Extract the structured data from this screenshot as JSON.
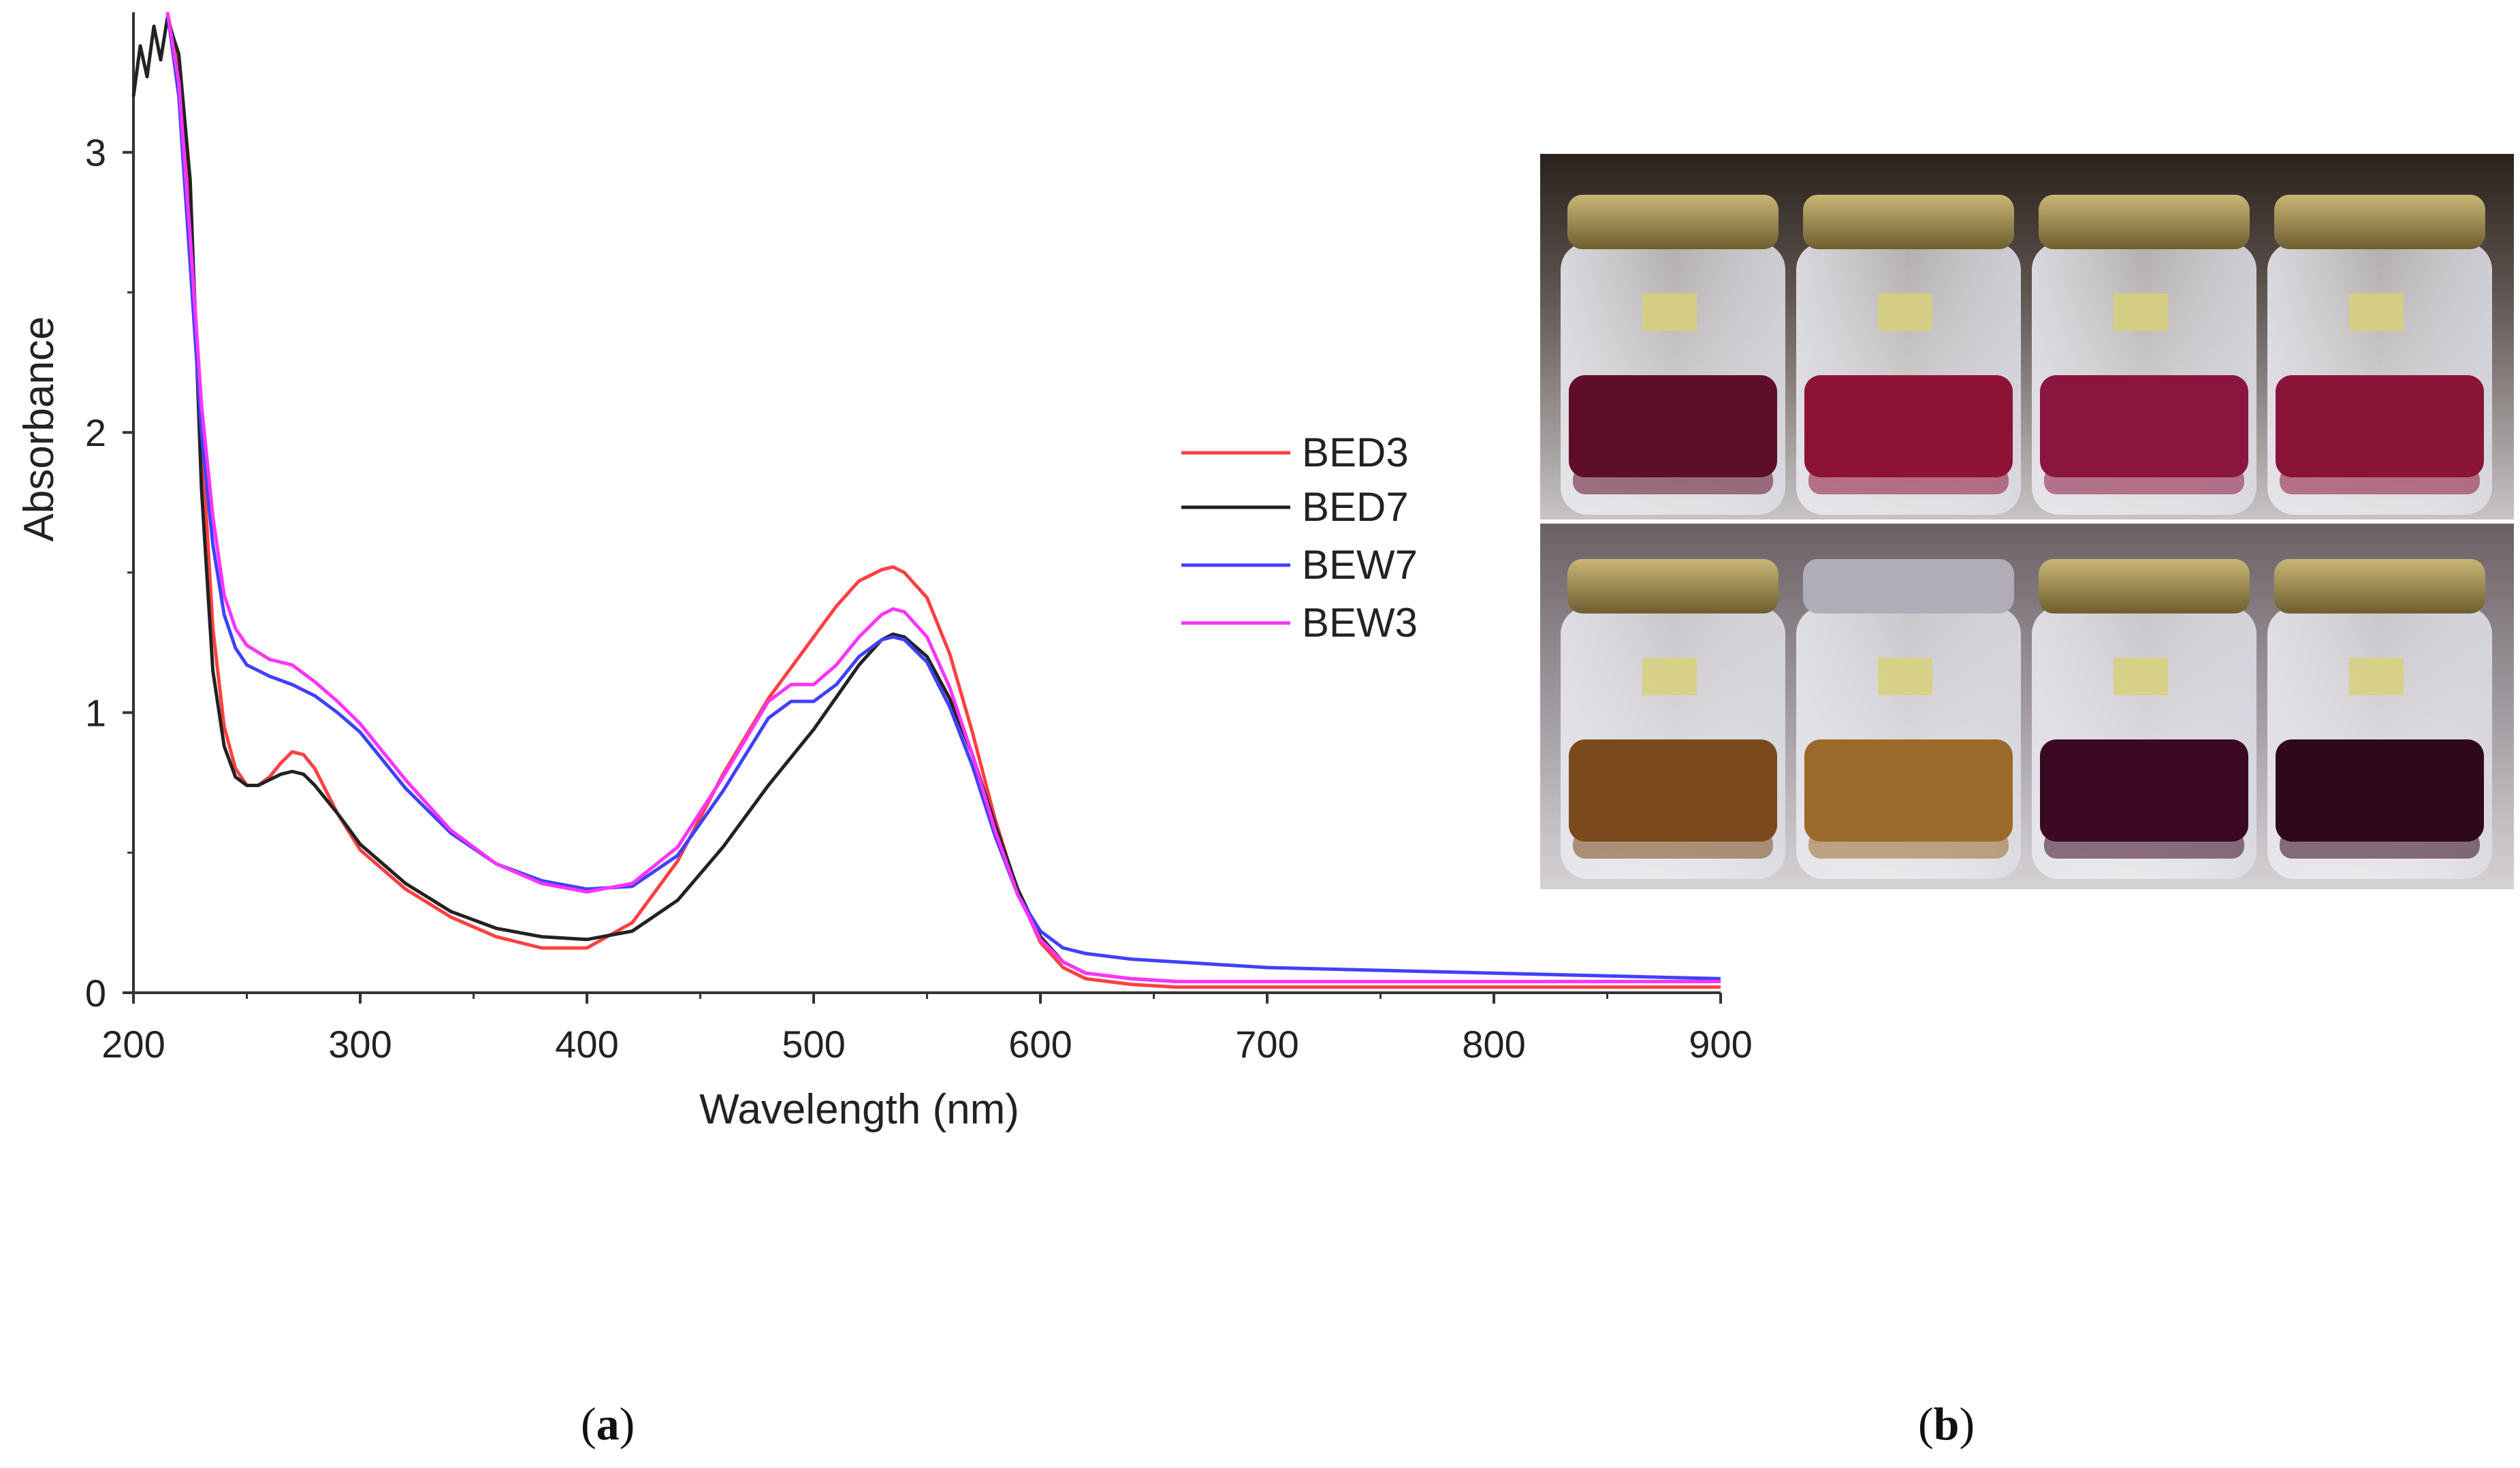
{
  "figure": {
    "panel_a": {
      "open": "(",
      "letter": "a",
      "close": ")"
    },
    "panel_b": {
      "open": "(",
      "letter": "b",
      "close": ")"
    }
  },
  "chart_data": {
    "type": "line",
    "title": "",
    "xlabel": "Wavelength (nm)",
    "ylabel": "Absorbance",
    "xlim": [
      200,
      900
    ],
    "ylim": [
      0,
      3.5
    ],
    "xticks": [
      200,
      300,
      400,
      500,
      600,
      700,
      800,
      900
    ],
    "yticks": [
      0,
      1,
      2,
      3
    ],
    "legend_position": "right",
    "series": [
      {
        "name": "BED3",
        "color": "#ff4040",
        "x": [
          215,
          220,
          225,
          230,
          235,
          240,
          245,
          250,
          255,
          260,
          265,
          270,
          275,
          280,
          290,
          300,
          320,
          340,
          360,
          380,
          400,
          420,
          440,
          460,
          480,
          500,
          510,
          520,
          530,
          535,
          540,
          550,
          560,
          570,
          580,
          590,
          600,
          610,
          620,
          640,
          660,
          680,
          700,
          750,
          800,
          850,
          900
        ],
        "y": [
          3.5,
          3.3,
          2.8,
          2.0,
          1.3,
          0.95,
          0.8,
          0.74,
          0.74,
          0.77,
          0.82,
          0.86,
          0.85,
          0.8,
          0.64,
          0.51,
          0.37,
          0.27,
          0.2,
          0.16,
          0.16,
          0.25,
          0.47,
          0.78,
          1.05,
          1.27,
          1.38,
          1.47,
          1.51,
          1.52,
          1.5,
          1.41,
          1.21,
          0.93,
          0.62,
          0.36,
          0.18,
          0.09,
          0.05,
          0.03,
          0.02,
          0.02,
          0.02,
          0.02,
          0.02,
          0.02,
          0.02
        ]
      },
      {
        "name": "BED7",
        "color": "#222222",
        "x": [
          200,
          203,
          206,
          209,
          212,
          215,
          218,
          220,
          225,
          230,
          235,
          240,
          245,
          250,
          255,
          260,
          265,
          270,
          275,
          280,
          290,
          300,
          320,
          340,
          360,
          380,
          400,
          420,
          440,
          460,
          480,
          500,
          520,
          530,
          535,
          540,
          550,
          560,
          570,
          580,
          590,
          600,
          610,
          620,
          640,
          660,
          680,
          700,
          750,
          800,
          850,
          900
        ],
        "y": [
          3.2,
          3.38,
          3.27,
          3.45,
          3.33,
          3.48,
          3.4,
          3.35,
          2.9,
          1.8,
          1.15,
          0.88,
          0.77,
          0.74,
          0.74,
          0.76,
          0.78,
          0.79,
          0.78,
          0.74,
          0.64,
          0.53,
          0.39,
          0.29,
          0.23,
          0.2,
          0.19,
          0.22,
          0.33,
          0.52,
          0.74,
          0.94,
          1.17,
          1.26,
          1.28,
          1.27,
          1.2,
          1.05,
          0.85,
          0.6,
          0.37,
          0.2,
          0.11,
          0.07,
          0.05,
          0.04,
          0.04,
          0.04,
          0.04,
          0.04,
          0.04,
          0.04
        ]
      },
      {
        "name": "BEW7",
        "color": "#4040ff",
        "x": [
          215,
          220,
          225,
          230,
          235,
          240,
          245,
          250,
          260,
          270,
          280,
          290,
          300,
          320,
          340,
          360,
          380,
          400,
          420,
          440,
          460,
          480,
          490,
          500,
          510,
          520,
          530,
          535,
          540,
          550,
          560,
          570,
          580,
          590,
          600,
          610,
          620,
          640,
          660,
          680,
          700,
          750,
          800,
          850,
          900
        ],
        "y": [
          3.5,
          3.2,
          2.6,
          2.0,
          1.6,
          1.35,
          1.23,
          1.17,
          1.13,
          1.1,
          1.06,
          1.0,
          0.93,
          0.73,
          0.57,
          0.46,
          0.4,
          0.37,
          0.38,
          0.49,
          0.72,
          0.98,
          1.04,
          1.04,
          1.1,
          1.2,
          1.26,
          1.27,
          1.26,
          1.18,
          1.02,
          0.81,
          0.56,
          0.35,
          0.22,
          0.16,
          0.14,
          0.12,
          0.11,
          0.1,
          0.09,
          0.08,
          0.07,
          0.06,
          0.05
        ]
      },
      {
        "name": "BEW3",
        "color": "#ff33ff",
        "x": [
          215,
          220,
          225,
          230,
          235,
          240,
          245,
          250,
          260,
          270,
          280,
          290,
          300,
          320,
          340,
          360,
          380,
          400,
          420,
          440,
          460,
          480,
          490,
          500,
          510,
          520,
          530,
          535,
          540,
          550,
          560,
          570,
          580,
          590,
          600,
          610,
          620,
          640,
          660,
          680,
          700,
          750,
          800,
          850,
          900
        ],
        "y": [
          3.5,
          3.25,
          2.7,
          2.1,
          1.7,
          1.42,
          1.3,
          1.24,
          1.19,
          1.17,
          1.11,
          1.04,
          0.96,
          0.76,
          0.58,
          0.46,
          0.39,
          0.36,
          0.39,
          0.52,
          0.77,
          1.04,
          1.1,
          1.1,
          1.17,
          1.27,
          1.35,
          1.37,
          1.36,
          1.27,
          1.09,
          0.85,
          0.58,
          0.35,
          0.19,
          0.11,
          0.07,
          0.05,
          0.04,
          0.04,
          0.04,
          0.04,
          0.04,
          0.04,
          0.04
        ]
      }
    ]
  },
  "photo": {
    "rows": 2,
    "jars_per_row": 4,
    "top_row_colors": [
      "#5e0e28",
      "#8e1236",
      "#8c1540",
      "#8a1438"
    ],
    "bottom_row_colors": [
      "#7a4a1c",
      "#9a6a2a",
      "#3a0a22",
      "#30081c"
    ],
    "cap_color": "#9a8448",
    "grey_cap_color": "#b0acb8"
  }
}
